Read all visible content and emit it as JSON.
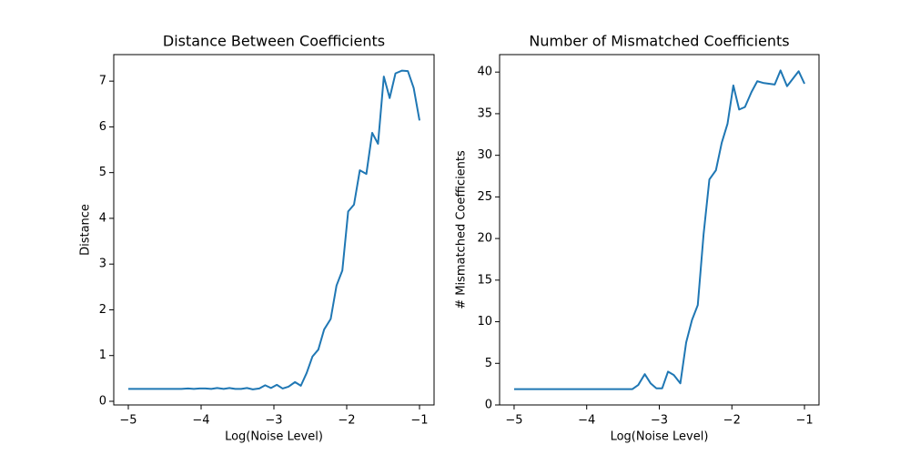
{
  "chart_data": [
    {
      "type": "line",
      "title": "Distance Between Coefficients",
      "xlabel": "Log(Noise Level)",
      "ylabel": "Distance",
      "x": [
        -5,
        -4.92,
        -4.84,
        -4.76,
        -4.67,
        -4.59,
        -4.51,
        -4.43,
        -4.35,
        -4.27,
        -4.18,
        -4.1,
        -4.02,
        -3.94,
        -3.86,
        -3.78,
        -3.69,
        -3.61,
        -3.53,
        -3.45,
        -3.37,
        -3.29,
        -3.2,
        -3.12,
        -3.04,
        -2.96,
        -2.88,
        -2.8,
        -2.71,
        -2.63,
        -2.55,
        -2.47,
        -2.39,
        -2.31,
        -2.22,
        -2.14,
        -2.06,
        -1.98,
        -1.9,
        -1.82,
        -1.73,
        -1.65,
        -1.57,
        -1.49,
        -1.41,
        -1.33,
        -1.24,
        -1.16,
        -1.08,
        -1
      ],
      "series": [
        {
          "color": "#1f77b4",
          "values": [
            0.27,
            0.27,
            0.27,
            0.27,
            0.27,
            0.27,
            0.27,
            0.27,
            0.27,
            0.27,
            0.28,
            0.27,
            0.28,
            0.28,
            0.27,
            0.29,
            0.27,
            0.29,
            0.27,
            0.27,
            0.29,
            0.26,
            0.28,
            0.35,
            0.29,
            0.36,
            0.28,
            0.32,
            0.42,
            0.34,
            0.62,
            0.98,
            1.13,
            1.57,
            1.8,
            2.53,
            2.86,
            4.15,
            4.3,
            5.05,
            4.97,
            5.87,
            5.63,
            7.1,
            6.63,
            7.17,
            7.23,
            7.22,
            6.85,
            6.14
          ]
        }
      ],
      "xlim": [
        -5.2,
        -0.8
      ],
      "xticks": [
        {
          "value": -5,
          "label": "−5"
        },
        {
          "value": -4,
          "label": "−4"
        },
        {
          "value": -3,
          "label": "−3"
        },
        {
          "value": -2,
          "label": "−2"
        },
        {
          "value": -1,
          "label": "−1"
        }
      ],
      "ylim": [
        -0.08,
        7.58
      ],
      "yticks": [
        0,
        1,
        2,
        3,
        4,
        5,
        6,
        7
      ]
    },
    {
      "type": "line",
      "title": "Number of Mismatched Coefficients",
      "xlabel": "Log(Noise Level)",
      "ylabel": "# Mismatched Coefficients",
      "x": [
        -5,
        -4.92,
        -4.84,
        -4.76,
        -4.67,
        -4.59,
        -4.51,
        -4.43,
        -4.35,
        -4.27,
        -4.18,
        -4.1,
        -4.02,
        -3.94,
        -3.86,
        -3.78,
        -3.69,
        -3.61,
        -3.53,
        -3.45,
        -3.37,
        -3.29,
        -3.2,
        -3.12,
        -3.04,
        -2.96,
        -2.88,
        -2.8,
        -2.71,
        -2.63,
        -2.55,
        -2.47,
        -2.39,
        -2.31,
        -2.22,
        -2.14,
        -2.06,
        -1.98,
        -1.9,
        -1.82,
        -1.73,
        -1.65,
        -1.57,
        -1.49,
        -1.41,
        -1.33,
        -1.24,
        -1.16,
        -1.08,
        -1
      ],
      "series": [
        {
          "color": "#1f77b4",
          "values": [
            1.9,
            1.9,
            1.9,
            1.9,
            1.9,
            1.9,
            1.9,
            1.9,
            1.9,
            1.9,
            1.9,
            1.9,
            1.9,
            1.9,
            1.9,
            1.9,
            1.9,
            1.9,
            1.9,
            1.9,
            1.9,
            2.4,
            3.7,
            2.6,
            2.0,
            2.0,
            4.0,
            3.6,
            2.6,
            7.5,
            10.2,
            12,
            20.5,
            27.1,
            28.2,
            31.5,
            33.8,
            38.4,
            35.5,
            35.8,
            37.6,
            38.9,
            38.7,
            38.6,
            38.5,
            40.2,
            38.3,
            39.2,
            40.1,
            38.6
          ]
        }
      ],
      "xlim": [
        -5.2,
        -0.8
      ],
      "xticks": [
        {
          "value": -5,
          "label": "−5"
        },
        {
          "value": -4,
          "label": "−4"
        },
        {
          "value": -3,
          "label": "−3"
        },
        {
          "value": -2,
          "label": "−2"
        },
        {
          "value": -1,
          "label": "−1"
        }
      ],
      "ylim": [
        0,
        42.1
      ],
      "yticks": [
        0,
        5,
        10,
        15,
        20,
        25,
        30,
        35,
        40
      ]
    }
  ]
}
